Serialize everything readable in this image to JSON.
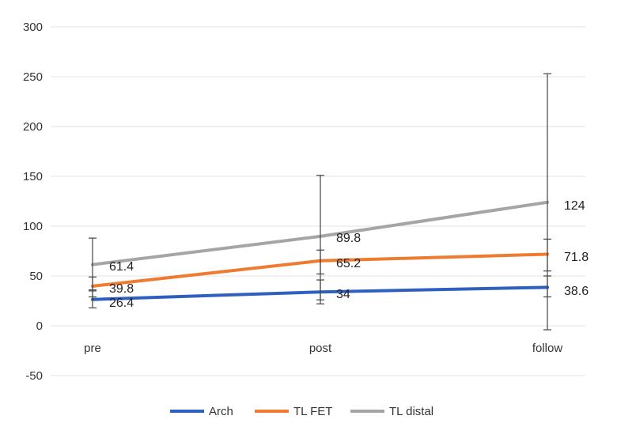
{
  "chart_data": {
    "type": "line",
    "title": "",
    "xlabel": "",
    "ylabel": "",
    "categories": [
      "pre",
      "post",
      "follow"
    ],
    "yticks": [
      "300",
      "250",
      "200",
      "150",
      "100",
      "50",
      "0",
      "-50"
    ],
    "ylim": [
      -50,
      300
    ],
    "grid": true,
    "legend_position": "bottom",
    "series": [
      {
        "name": "Arch",
        "color": "#2f5fbf",
        "values": [
          26.4,
          34,
          38.6
        ],
        "labels": [
          "26.4",
          "34",
          "38.6"
        ],
        "error_low": [
          18,
          22,
          29
        ],
        "error_high": [
          35,
          46,
          50
        ]
      },
      {
        "name": "TL FET",
        "color": "#ee7b30",
        "values": [
          39.8,
          65.2,
          71.8
        ],
        "labels": [
          "39.8",
          "65.2",
          "71.8"
        ],
        "error_low": [
          29,
          52,
          55
        ],
        "error_high": [
          49,
          76,
          87
        ]
      },
      {
        "name": "TL distal",
        "color": "#a5a5a5",
        "values": [
          61.4,
          89.8,
          124
        ],
        "labels": [
          "61.4",
          "89.8",
          "124"
        ],
        "error_low": [
          36,
          26,
          -4
        ],
        "error_high": [
          88,
          151,
          253
        ]
      }
    ]
  }
}
